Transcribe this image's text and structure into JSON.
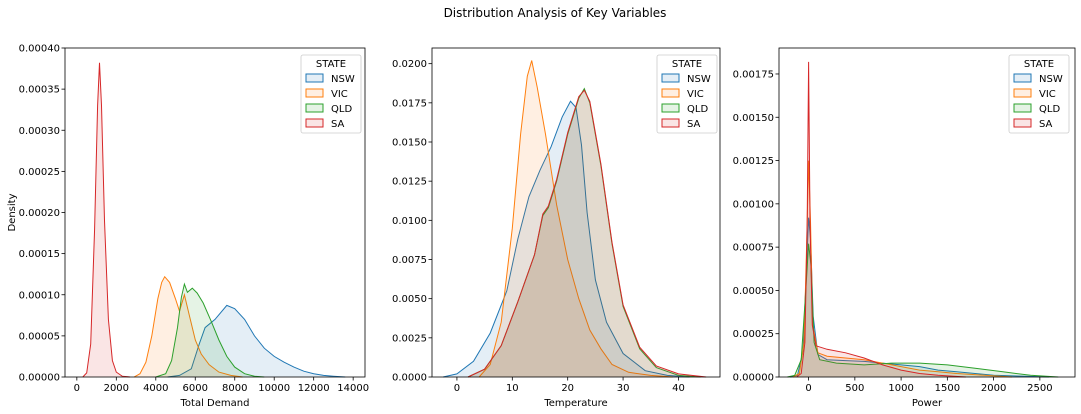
{
  "figure": {
    "suptitle": "Distribution Analysis of Key Variables"
  },
  "colors": {
    "NSW": "#1f77b4",
    "VIC": "#ff7f0e",
    "QLD": "#2ca02c",
    "SA": "#d62728"
  },
  "chart_data": [
    {
      "type": "area",
      "title": "",
      "xlabel": "Total Demand",
      "ylabel": "Density",
      "xlim": [
        -600,
        14600
      ],
      "ylim": [
        0,
        0.0004
      ],
      "xticks": [
        0,
        2000,
        4000,
        6000,
        8000,
        10000,
        12000,
        14000
      ],
      "yticks": [
        0,
        5e-05,
        0.0001,
        0.00015,
        0.0002,
        0.00025,
        0.0003,
        0.00035,
        0.0004
      ],
      "ytick_labels": [
        "0.00000",
        "0.00005",
        "0.00010",
        "0.00015",
        "0.00020",
        "0.00025",
        "0.00030",
        "0.00035",
        "0.00040"
      ],
      "grid": false,
      "legend": {
        "title": "STATE",
        "position": "top-right",
        "entries": [
          "NSW",
          "VIC",
          "QLD",
          "SA"
        ]
      },
      "series": [
        {
          "name": "NSW",
          "points": [
            [
              4600,
              0
            ],
            [
              5200,
              2e-06
            ],
            [
              5800,
              1e-05
            ],
            [
              6200,
              4e-05
            ],
            [
              6500,
              6e-05
            ],
            [
              7000,
              7e-05
            ],
            [
              7600,
              8.7e-05
            ],
            [
              8000,
              8.3e-05
            ],
            [
              8500,
              7e-05
            ],
            [
              9000,
              5e-05
            ],
            [
              9500,
              3.5e-05
            ],
            [
              10000,
              2.5e-05
            ],
            [
              10500,
              1.8e-05
            ],
            [
              11000,
              1.2e-05
            ],
            [
              11500,
              7e-06
            ],
            [
              12000,
              4e-06
            ],
            [
              12500,
              2e-06
            ],
            [
              13000,
              1e-06
            ],
            [
              13600,
              0
            ]
          ]
        },
        {
          "name": "VIC",
          "points": [
            [
              2900,
              0
            ],
            [
              3200,
              4e-06
            ],
            [
              3500,
              1.8e-05
            ],
            [
              3800,
              5e-05
            ],
            [
              4100,
              9.5e-05
            ],
            [
              4300,
              0.000115
            ],
            [
              4450,
              0.000122
            ],
            [
              4700,
              0.000115
            ],
            [
              5000,
              9.5e-05
            ],
            [
              5200,
              8e-05
            ],
            [
              5450,
              0.0001
            ],
            [
              5700,
              7.5e-05
            ],
            [
              6000,
              4.5e-05
            ],
            [
              6300,
              2.8e-05
            ],
            [
              6700,
              1.5e-05
            ],
            [
              7200,
              6e-06
            ],
            [
              7800,
              2e-06
            ],
            [
              8400,
              0
            ]
          ]
        },
        {
          "name": "QLD",
          "points": [
            [
              4000,
              0
            ],
            [
              4500,
              4e-06
            ],
            [
              4800,
              2e-05
            ],
            [
              5100,
              6e-05
            ],
            [
              5300,
              9.7e-05
            ],
            [
              5450,
              0.000113
            ],
            [
              5600,
              0.000103
            ],
            [
              5850,
              0.000108
            ],
            [
              6100,
              0.000102
            ],
            [
              6400,
              9e-05
            ],
            [
              6800,
              6.8e-05
            ],
            [
              7200,
              4.5e-05
            ],
            [
              7600,
              2.5e-05
            ],
            [
              8000,
              1.2e-05
            ],
            [
              8500,
              4e-06
            ],
            [
              9000,
              1e-06
            ],
            [
              9500,
              0
            ]
          ]
        },
        {
          "name": "SA",
          "points": [
            [
              300,
              0
            ],
            [
              500,
              5e-06
            ],
            [
              700,
              4e-05
            ],
            [
              900,
              0.00018
            ],
            [
              1050,
              0.00033
            ],
            [
              1150,
              0.000382
            ],
            [
              1250,
              0.00033
            ],
            [
              1400,
              0.00019
            ],
            [
              1600,
              7e-05
            ],
            [
              1800,
              2e-05
            ],
            [
              2000,
              6e-06
            ],
            [
              2300,
              1e-06
            ],
            [
              2700,
              0
            ]
          ]
        }
      ]
    },
    {
      "type": "area",
      "title": "",
      "xlabel": "Temperature",
      "ylabel": "",
      "xlim": [
        -4.5,
        47.5
      ],
      "ylim": [
        0,
        0.021
      ],
      "xticks": [
        0,
        10,
        20,
        30,
        40
      ],
      "yticks": [
        0,
        0.0025,
        0.005,
        0.0075,
        0.01,
        0.0125,
        0.015,
        0.0175,
        0.02
      ],
      "ytick_labels": [
        "0.0000",
        "0.0025",
        "0.0050",
        "0.0075",
        "0.0100",
        "0.0125",
        "0.0150",
        "0.0175",
        "0.0200"
      ],
      "grid": false,
      "legend": {
        "title": "STATE",
        "position": "top-right",
        "entries": [
          "NSW",
          "VIC",
          "QLD",
          "SA"
        ]
      },
      "series": [
        {
          "name": "NSW",
          "points": [
            [
              -2.5,
              0
            ],
            [
              0,
              0.0002
            ],
            [
              3,
              0.001
            ],
            [
              6,
              0.0028
            ],
            [
              9,
              0.0055
            ],
            [
              11,
              0.0088
            ],
            [
              13,
              0.0115
            ],
            [
              15,
              0.0132
            ],
            [
              17,
              0.0147
            ],
            [
              19,
              0.0166
            ],
            [
              20.5,
              0.0176
            ],
            [
              21.5,
              0.0172
            ],
            [
              22.5,
              0.0148
            ],
            [
              23.5,
              0.0105
            ],
            [
              25,
              0.0062
            ],
            [
              27,
              0.0035
            ],
            [
              30,
              0.0015
            ],
            [
              34,
              0.0004
            ],
            [
              38,
              0.0001
            ],
            [
              42,
              0
            ]
          ]
        },
        {
          "name": "VIC",
          "points": [
            [
              4,
              0
            ],
            [
              6,
              0.0008
            ],
            [
              8,
              0.0035
            ],
            [
              10,
              0.0095
            ],
            [
              11.5,
              0.0155
            ],
            [
              12.7,
              0.0192
            ],
            [
              13.5,
              0.0202
            ],
            [
              14.5,
              0.0185
            ],
            [
              16,
              0.0155
            ],
            [
              18,
              0.011
            ],
            [
              20,
              0.0075
            ],
            [
              22,
              0.005
            ],
            [
              24,
              0.003
            ],
            [
              26,
              0.0018
            ],
            [
              28,
              0.0008
            ],
            [
              31,
              0.0003
            ],
            [
              35,
              0.0001
            ],
            [
              39,
              0
            ]
          ]
        },
        {
          "name": "QLD",
          "points": [
            [
              2,
              0
            ],
            [
              5,
              0.0005
            ],
            [
              8,
              0.002
            ],
            [
              11,
              0.0048
            ],
            [
              14,
              0.0078
            ],
            [
              15.5,
              0.0103
            ],
            [
              16.5,
              0.0108
            ],
            [
              18,
              0.0125
            ],
            [
              20,
              0.0155
            ],
            [
              22,
              0.0178
            ],
            [
              23,
              0.0184
            ],
            [
              24,
              0.0175
            ],
            [
              26,
              0.0135
            ],
            [
              28,
              0.0085
            ],
            [
              30,
              0.0045
            ],
            [
              33,
              0.0018
            ],
            [
              36,
              0.0006
            ],
            [
              40,
              0.0001
            ],
            [
              44,
              0
            ]
          ]
        },
        {
          "name": "SA",
          "points": [
            [
              2,
              0
            ],
            [
              5,
              0.0005
            ],
            [
              8,
              0.002
            ],
            [
              11,
              0.0048
            ],
            [
              14,
              0.0078
            ],
            [
              15.5,
              0.0104
            ],
            [
              16.5,
              0.0109
            ],
            [
              18,
              0.0126
            ],
            [
              20,
              0.0156
            ],
            [
              22,
              0.0179
            ],
            [
              23,
              0.0183
            ],
            [
              24,
              0.0176
            ],
            [
              26,
              0.0136
            ],
            [
              28,
              0.0086
            ],
            [
              30,
              0.0046
            ],
            [
              33,
              0.0019
            ],
            [
              36,
              0.0007
            ],
            [
              40,
              0.0002
            ],
            [
              45,
              0
            ]
          ]
        }
      ]
    },
    {
      "type": "area",
      "title": "",
      "xlabel": "Power",
      "ylabel": "",
      "xlim": [
        -320,
        2880
      ],
      "ylim": [
        0,
        0.0019
      ],
      "xticks": [
        0,
        500,
        1000,
        1500,
        2000,
        2500
      ],
      "yticks": [
        0,
        0.00025,
        0.0005,
        0.00075,
        0.001,
        0.00125,
        0.0015,
        0.00175
      ],
      "ytick_labels": [
        "0.00000",
        "0.00025",
        "0.00050",
        "0.00075",
        "0.00100",
        "0.00125",
        "0.00150",
        "0.00175"
      ],
      "grid": false,
      "legend": {
        "title": "STATE",
        "position": "top-right",
        "entries": [
          "NSW",
          "VIC",
          "QLD",
          "SA"
        ]
      },
      "series": [
        {
          "name": "NSW",
          "points": [
            [
              -200,
              0
            ],
            [
              -120,
              1e-05
            ],
            [
              -60,
              0.00015
            ],
            [
              -25,
              0.0006
            ],
            [
              0,
              0.00092
            ],
            [
              20,
              0.0008
            ],
            [
              50,
              0.00035
            ],
            [
              100,
              0.00013
            ],
            [
              200,
              0.0001
            ],
            [
              400,
              9.5e-05
            ],
            [
              600,
              9e-05
            ],
            [
              800,
              8e-05
            ],
            [
              1000,
              7e-05
            ],
            [
              1200,
              6e-05
            ],
            [
              1400,
              4e-05
            ],
            [
              1600,
              3e-05
            ],
            [
              1800,
              2e-05
            ],
            [
              2000,
              1e-05
            ],
            [
              2300,
              5e-06
            ],
            [
              2600,
              0
            ]
          ]
        },
        {
          "name": "VIC",
          "points": [
            [
              -170,
              0
            ],
            [
              -100,
              2e-05
            ],
            [
              -50,
              0.0002
            ],
            [
              -20,
              0.0008
            ],
            [
              0,
              0.00125
            ],
            [
              20,
              0.0009
            ],
            [
              45,
              0.0003
            ],
            [
              100,
              0.00014
            ],
            [
              200,
              0.00012
            ],
            [
              400,
              0.00011
            ],
            [
              600,
              0.0001
            ],
            [
              800,
              8e-05
            ],
            [
              1000,
              6e-05
            ],
            [
              1200,
              4e-05
            ],
            [
              1400,
              3e-05
            ],
            [
              1600,
              2e-05
            ],
            [
              1900,
              1e-05
            ],
            [
              2200,
              0
            ]
          ]
        },
        {
          "name": "QLD",
          "points": [
            [
              -230,
              0
            ],
            [
              -150,
              1e-05
            ],
            [
              -80,
              0.0001
            ],
            [
              -30,
              0.0005
            ],
            [
              0,
              0.00077
            ],
            [
              25,
              0.00065
            ],
            [
              60,
              0.0002
            ],
            [
              120,
              0.0001
            ],
            [
              300,
              8e-05
            ],
            [
              600,
              7e-05
            ],
            [
              900,
              8e-05
            ],
            [
              1200,
              8e-05
            ],
            [
              1500,
              7e-05
            ],
            [
              1800,
              5e-05
            ],
            [
              2100,
              3e-05
            ],
            [
              2400,
              1e-05
            ],
            [
              2700,
              0
            ]
          ]
        },
        {
          "name": "SA",
          "points": [
            [
              -130,
              0
            ],
            [
              -80,
              2e-05
            ],
            [
              -40,
              0.0002
            ],
            [
              -15,
              0.0009
            ],
            [
              0,
              0.00182
            ],
            [
              15,
              0.0009
            ],
            [
              40,
              0.0003
            ],
            [
              80,
              0.00018
            ],
            [
              200,
              0.00016
            ],
            [
              400,
              0.00014
            ],
            [
              600,
              0.00011
            ],
            [
              800,
              7e-05
            ],
            [
              1000,
              4e-05
            ],
            [
              1200,
              2e-05
            ],
            [
              1400,
              1e-05
            ],
            [
              1700,
              0
            ]
          ]
        }
      ]
    }
  ]
}
